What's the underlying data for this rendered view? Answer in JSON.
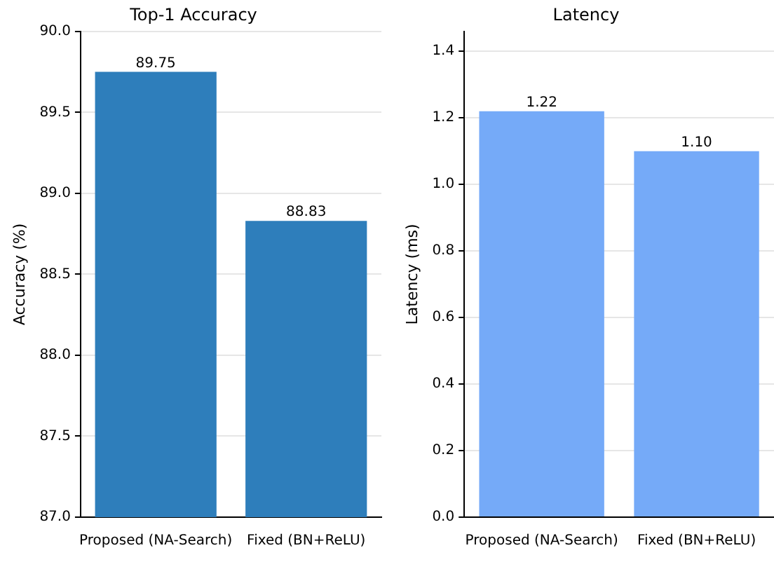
{
  "chart_data": [
    {
      "type": "bar",
      "title": "Top-1 Accuracy",
      "ylabel": "Accuracy (%)",
      "categories": [
        "Proposed (NA-Search)",
        "Fixed (BN+ReLU)"
      ],
      "values": [
        89.75,
        88.83
      ],
      "color": "#2e7ebb",
      "ylim": [
        87,
        90
      ],
      "yticks": [
        {
          "value": 87,
          "label": "87.0"
        },
        {
          "value": 87.5,
          "label": "87.5"
        },
        {
          "value": 88,
          "label": "88.0"
        },
        {
          "value": 88.5,
          "label": "88.5"
        },
        {
          "value": 89,
          "label": "89.0"
        },
        {
          "value": 89.5,
          "label": "89.5"
        },
        {
          "value": 90,
          "label": "90.0"
        }
      ],
      "grid": "y",
      "value_labels": [
        "89.75",
        "88.83"
      ]
    },
    {
      "type": "bar",
      "title": "Latency",
      "ylabel": "Latency (ms)",
      "categories": [
        "Proposed (NA-Search)",
        "Fixed (BN+ReLU)"
      ],
      "values": [
        1.22,
        1.1
      ],
      "color": "#75aaf8",
      "ylim": [
        0,
        1.46
      ],
      "yticks": [
        {
          "value": 0,
          "label": "0.0"
        },
        {
          "value": 0.2,
          "label": "0.2"
        },
        {
          "value": 0.4,
          "label": "0.4"
        },
        {
          "value": 0.6,
          "label": "0.6"
        },
        {
          "value": 0.8,
          "label": "0.8"
        },
        {
          "value": 1,
          "label": "1.0"
        },
        {
          "value": 1.2,
          "label": "1.2"
        },
        {
          "value": 1.4,
          "label": "1.4"
        }
      ],
      "grid": "y",
      "value_labels": [
        "1.22",
        "1.10"
      ]
    }
  ]
}
